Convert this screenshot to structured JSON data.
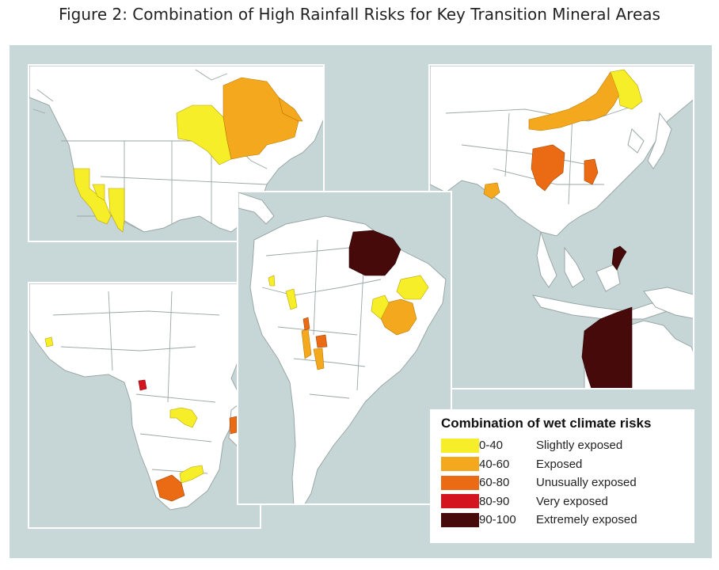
{
  "title": "Figure 2: Combination of High Rainfall Risks for Key Transition Mineral Areas",
  "legend": {
    "title": "Combination of wet climate risks",
    "items": [
      {
        "range": "0-40",
        "label": "Slightly exposed",
        "color": "#f7ee2a"
      },
      {
        "range": "40-60",
        "label": "Exposed",
        "color": "#f4a81d"
      },
      {
        "range": "60-80",
        "label": "Unusually exposed",
        "color": "#ea6b14"
      },
      {
        "range": "80-90",
        "label": "Very exposed",
        "color": "#d4141e"
      },
      {
        "range": "90-100",
        "label": "Extremely exposed",
        "color": "#470a0a"
      }
    ]
  },
  "colors": {
    "water": "#c6d6d6",
    "land": "#ffffff",
    "slightly": "#f7ee2a",
    "exposed": "#f4a81d",
    "unusually": "#ea6b14",
    "very": "#d4141e",
    "extremely": "#470a0a"
  },
  "panels": [
    "north-america",
    "east-asia-australia",
    "south-america",
    "africa"
  ]
}
